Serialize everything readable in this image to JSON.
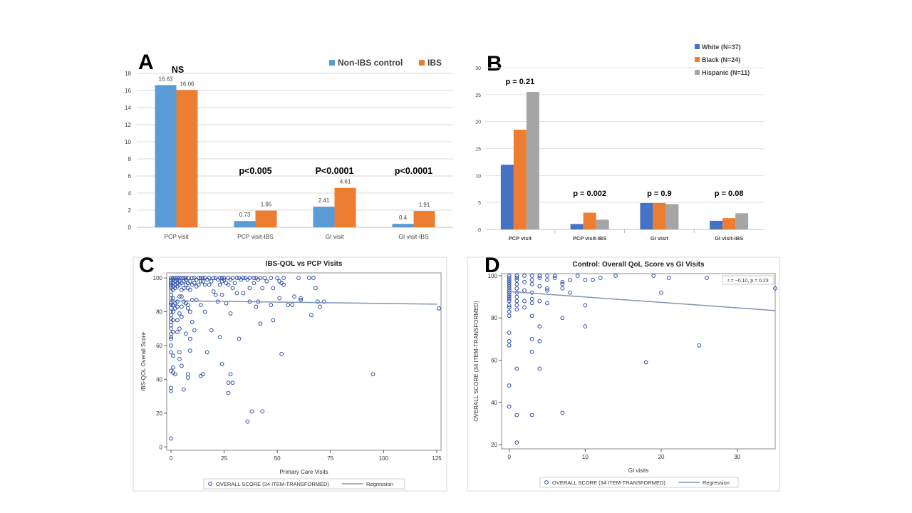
{
  "panels": {
    "a": {
      "letter": "A"
    },
    "b": {
      "letter": "B"
    },
    "c": {
      "letter": "C"
    },
    "d": {
      "letter": "D"
    }
  },
  "colors": {
    "blue_a": "#5b9bd5",
    "orange": "#ed7d31",
    "blue_b": "#4472c4",
    "gray": "#a5a5a5",
    "marker": "#2f4fa8",
    "regression": "#7f95b3"
  },
  "chart_data": [
    {
      "type": "bar",
      "panel": "A",
      "categories": [
        "PCP visit",
        "PCP visit-IBS",
        "GI visit",
        "GI visit-IBS"
      ],
      "series": [
        {
          "name": "Non-IBS control",
          "values": [
            16.63,
            0.73,
            2.41,
            0.4
          ],
          "labels": [
            "16.63",
            "0.73",
            "2.41",
            "0.4"
          ]
        },
        {
          "name": "IBS",
          "values": [
            16.06,
            1.95,
            4.61,
            1.91
          ],
          "labels": [
            "16.06",
            "1.95",
            "4.61",
            "1.91"
          ]
        }
      ],
      "annotations": [
        "NS",
        "p<0.005",
        "P<0.0001",
        "p<0.0001"
      ],
      "ylim": [
        0,
        18
      ],
      "yticks": [
        "0",
        "2",
        "4",
        "6",
        "8",
        "10",
        "12",
        "14",
        "16",
        "18"
      ],
      "grid": true,
      "legend": "top-right"
    },
    {
      "type": "bar",
      "panel": "B",
      "categories": [
        "PCP visit",
        "PCP visit-IBS",
        "GI visit",
        "GI visit-IBS"
      ],
      "series": [
        {
          "name": "White (N=37)",
          "values": [
            12,
            1,
            4.9,
            1.6
          ]
        },
        {
          "name": "Black (N=24)",
          "values": [
            18.5,
            3.1,
            4.9,
            2.1
          ]
        },
        {
          "name": "Hispanic (N=11)",
          "values": [
            25.5,
            1.8,
            4.7,
            3.0
          ]
        }
      ],
      "annotations": [
        "p = 0.21",
        "p = 0.002",
        "p = 0.9",
        "p = 0.08"
      ],
      "ylim": [
        0,
        30
      ],
      "yticks": [
        "0",
        "5",
        "10",
        "15",
        "20",
        "25",
        "30"
      ],
      "grid": true,
      "legend": "top-right"
    },
    {
      "type": "scatter",
      "panel": "C",
      "title": "IBS-QOL vs PCP Visits",
      "xlabel": "Primary Care Visits",
      "ylabel": "IBS-QOL Overall Score",
      "xlim": [
        -2,
        127
      ],
      "ylim": [
        -2,
        103
      ],
      "xticks": [
        "0",
        "25",
        "50",
        "75",
        "100",
        "125"
      ],
      "yticks": [
        "0",
        "20",
        "40",
        "60",
        "80",
        "100"
      ],
      "legend": {
        "marker": "OVERALL SCORE (34 ITEM-TRANSFORMED)",
        "line": "Regression"
      },
      "regression": [
        [
          0,
          86.5
        ],
        [
          125,
          84.5
        ]
      ],
      "points": [
        [
          0,
          100
        ],
        [
          0,
          99
        ],
        [
          0,
          98
        ],
        [
          0,
          97
        ],
        [
          0,
          96
        ],
        [
          0,
          95
        ],
        [
          0,
          94
        ],
        [
          0,
          92
        ],
        [
          0,
          90
        ],
        [
          0,
          88
        ],
        [
          0,
          86
        ],
        [
          0,
          85
        ],
        [
          0,
          84
        ],
        [
          0,
          82
        ],
        [
          0,
          80
        ],
        [
          0,
          78
        ],
        [
          0,
          76
        ],
        [
          0,
          74
        ],
        [
          0,
          72
        ],
        [
          0,
          70
        ],
        [
          0,
          67
        ],
        [
          0,
          65
        ],
        [
          0,
          64
        ],
        [
          0,
          60
        ],
        [
          0,
          56
        ],
        [
          0,
          45
        ],
        [
          0,
          35
        ],
        [
          0,
          33
        ],
        [
          0,
          5
        ],
        [
          1,
          100
        ],
        [
          1,
          99
        ],
        [
          1,
          97
        ],
        [
          1,
          95
        ],
        [
          1,
          93
        ],
        [
          1,
          88
        ],
        [
          1,
          84
        ],
        [
          1,
          80
        ],
        [
          1,
          75
        ],
        [
          1,
          68
        ],
        [
          1,
          54
        ],
        [
          1,
          47
        ],
        [
          1,
          44
        ],
        [
          2,
          100
        ],
        [
          2,
          98
        ],
        [
          2,
          96
        ],
        [
          2,
          94
        ],
        [
          2,
          85
        ],
        [
          2,
          82
        ],
        [
          2,
          43
        ],
        [
          3,
          100
        ],
        [
          3,
          99
        ],
        [
          3,
          97
        ],
        [
          3,
          95
        ],
        [
          3,
          86
        ],
        [
          3,
          83
        ],
        [
          3,
          75
        ],
        [
          3,
          68
        ],
        [
          4,
          100
        ],
        [
          4,
          98
        ],
        [
          4,
          96
        ],
        [
          4,
          89
        ],
        [
          4,
          79
        ],
        [
          4,
          70
        ],
        [
          4,
          56
        ],
        [
          4,
          52
        ],
        [
          5,
          100
        ],
        [
          5,
          97
        ],
        [
          5,
          93
        ],
        [
          5,
          89
        ],
        [
          5,
          83
        ],
        [
          5,
          77
        ],
        [
          5,
          48
        ],
        [
          6,
          100
        ],
        [
          6,
          98
        ],
        [
          6,
          94
        ],
        [
          6,
          86
        ],
        [
          6,
          34
        ],
        [
          7,
          100
        ],
        [
          7,
          99
        ],
        [
          7,
          96
        ],
        [
          7,
          85
        ],
        [
          7,
          67
        ],
        [
          8,
          100
        ],
        [
          8,
          97
        ],
        [
          8,
          94
        ],
        [
          8,
          84
        ],
        [
          8,
          82
        ],
        [
          8,
          43
        ],
        [
          8,
          41
        ],
        [
          9,
          98
        ],
        [
          9,
          93
        ],
        [
          9,
          80
        ],
        [
          9,
          64
        ],
        [
          9,
          57
        ],
        [
          10,
          100
        ],
        [
          10,
          96
        ],
        [
          10,
          87
        ],
        [
          10,
          74
        ],
        [
          11,
          100
        ],
        [
          11,
          97
        ],
        [
          11,
          69
        ],
        [
          12,
          99
        ],
        [
          12,
          95
        ],
        [
          12,
          87
        ],
        [
          13,
          100
        ],
        [
          13,
          96
        ],
        [
          14,
          100
        ],
        [
          14,
          98
        ],
        [
          14,
          84
        ],
        [
          14,
          42
        ],
        [
          15,
          100
        ],
        [
          15,
          98
        ],
        [
          15,
          43
        ],
        [
          16,
          100
        ],
        [
          16,
          96
        ],
        [
          16,
          80
        ],
        [
          17,
          99
        ],
        [
          17,
          56
        ],
        [
          18,
          100
        ],
        [
          18,
          96
        ],
        [
          19,
          98
        ],
        [
          19,
          69
        ],
        [
          20,
          100
        ],
        [
          20,
          92
        ],
        [
          21,
          100
        ],
        [
          21,
          90
        ],
        [
          22,
          99
        ],
        [
          22,
          86
        ],
        [
          23,
          100
        ],
        [
          23,
          96
        ],
        [
          23,
          65
        ],
        [
          24,
          100
        ],
        [
          24,
          98
        ],
        [
          24,
          90
        ],
        [
          24,
          49
        ],
        [
          25,
          100
        ],
        [
          25,
          99
        ],
        [
          26,
          97
        ],
        [
          26,
          85
        ],
        [
          27,
          100
        ],
        [
          27,
          96
        ],
        [
          27,
          38
        ],
        [
          27,
          32
        ],
        [
          28,
          99
        ],
        [
          28,
          43
        ],
        [
          28,
          79
        ],
        [
          29,
          100
        ],
        [
          29,
          94
        ],
        [
          29,
          38
        ],
        [
          30,
          97
        ],
        [
          31,
          100
        ],
        [
          31,
          91
        ],
        [
          32,
          100
        ],
        [
          32,
          64
        ],
        [
          33,
          99
        ],
        [
          34,
          100
        ],
        [
          34,
          91
        ],
        [
          35,
          100
        ],
        [
          36,
          99
        ],
        [
          36,
          15
        ],
        [
          37,
          100
        ],
        [
          37,
          94
        ],
        [
          37,
          86
        ],
        [
          38,
          21
        ],
        [
          39,
          100
        ],
        [
          39,
          97
        ],
        [
          40,
          100
        ],
        [
          40,
          83
        ],
        [
          41,
          99
        ],
        [
          41,
          86
        ],
        [
          42,
          100
        ],
        [
          42,
          73
        ],
        [
          43,
          94
        ],
        [
          43,
          21
        ],
        [
          44,
          100
        ],
        [
          45,
          98
        ],
        [
          47,
          100
        ],
        [
          47,
          84
        ],
        [
          48,
          75
        ],
        [
          48,
          94
        ],
        [
          50,
          100
        ],
        [
          51,
          98
        ],
        [
          51,
          88
        ],
        [
          52,
          97
        ],
        [
          52,
          55
        ],
        [
          53,
          100
        ],
        [
          53,
          96
        ],
        [
          55,
          84
        ],
        [
          57,
          84
        ],
        [
          58,
          89
        ],
        [
          60,
          100
        ],
        [
          61,
          88
        ],
        [
          61,
          87
        ],
        [
          65,
          100
        ],
        [
          66,
          78
        ],
        [
          67,
          100
        ],
        [
          68,
          94
        ],
        [
          69,
          86
        ],
        [
          70,
          83
        ],
        [
          72,
          86
        ],
        [
          95,
          43
        ],
        [
          126,
          82
        ]
      ]
    },
    {
      "type": "scatter",
      "panel": "D",
      "title": "Control: Overall QoL Score vs GI Visits",
      "xlabel": "GI visits",
      "ylabel": "OVERALL SCORE (34 ITEM-TRANSFORMED)",
      "annotation": "r = −0.10, p = 0.23",
      "xlim": [
        -1,
        35
      ],
      "ylim": [
        18,
        101
      ],
      "xticks": [
        "0",
        "10",
        "20",
        "30"
      ],
      "yticks": [
        "20",
        "40",
        "60",
        "80",
        "100"
      ],
      "legend": {
        "marker": "OVERALL SCORE (34 ITEM-TRANSFORMED)",
        "line": "Regression"
      },
      "regression": [
        [
          0,
          92.5
        ],
        [
          35,
          83.5
        ]
      ],
      "points": [
        [
          0,
          100
        ],
        [
          0,
          99
        ],
        [
          0,
          98
        ],
        [
          0,
          97
        ],
        [
          0,
          96
        ],
        [
          0,
          95
        ],
        [
          0,
          94
        ],
        [
          0,
          93
        ],
        [
          0,
          92
        ],
        [
          0,
          91
        ],
        [
          0,
          90
        ],
        [
          0,
          89
        ],
        [
          0,
          88
        ],
        [
          0,
          86
        ],
        [
          0,
          85
        ],
        [
          0,
          83
        ],
        [
          0,
          81
        ],
        [
          0,
          73
        ],
        [
          0,
          69
        ],
        [
          0,
          67
        ],
        [
          0,
          48
        ],
        [
          0,
          38
        ],
        [
          1,
          100
        ],
        [
          1,
          99
        ],
        [
          1,
          98
        ],
        [
          1,
          96
        ],
        [
          1,
          94
        ],
        [
          1,
          92
        ],
        [
          1,
          90
        ],
        [
          1,
          88
        ],
        [
          1,
          86
        ],
        [
          1,
          84
        ],
        [
          1,
          56
        ],
        [
          1,
          34
        ],
        [
          1,
          21
        ],
        [
          2,
          100
        ],
        [
          2,
          97
        ],
        [
          2,
          93
        ],
        [
          2,
          88
        ],
        [
          2,
          85
        ],
        [
          3,
          100
        ],
        [
          3,
          98
        ],
        [
          3,
          96
        ],
        [
          3,
          92
        ],
        [
          3,
          89
        ],
        [
          3,
          87
        ],
        [
          3,
          81
        ],
        [
          3,
          70
        ],
        [
          3,
          64
        ],
        [
          3,
          34
        ],
        [
          4,
          100
        ],
        [
          4,
          99
        ],
        [
          4,
          95
        ],
        [
          4,
          88
        ],
        [
          4,
          76
        ],
        [
          4,
          69
        ],
        [
          4,
          56
        ],
        [
          5,
          100
        ],
        [
          5,
          98
        ],
        [
          5,
          94
        ],
        [
          5,
          93
        ],
        [
          5,
          87
        ],
        [
          6,
          100
        ],
        [
          6,
          99
        ],
        [
          7,
          97
        ],
        [
          7,
          96
        ],
        [
          7,
          94
        ],
        [
          7,
          80
        ],
        [
          7,
          35
        ],
        [
          8,
          98
        ],
        [
          8,
          92
        ],
        [
          9,
          100
        ],
        [
          10,
          98
        ],
        [
          10,
          86
        ],
        [
          10,
          76
        ],
        [
          11,
          98
        ],
        [
          12,
          99
        ],
        [
          14,
          100
        ],
        [
          18,
          59
        ],
        [
          19,
          100
        ],
        [
          20,
          92
        ],
        [
          21,
          99
        ],
        [
          25,
          67
        ],
        [
          26,
          99
        ],
        [
          35,
          94
        ]
      ]
    }
  ]
}
